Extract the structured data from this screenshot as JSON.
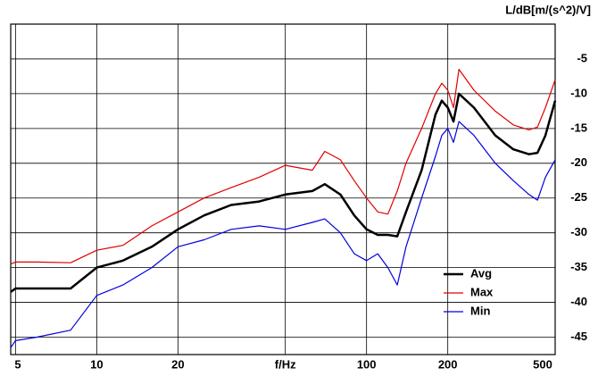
{
  "chart_data": {
    "type": "line",
    "y_label": "L/dB[m/(s^2)/V]",
    "x": [
      4.8,
      5,
      6,
      8,
      10,
      12.5,
      16,
      20,
      25,
      31.5,
      40,
      50,
      63,
      70,
      80,
      90,
      100,
      110,
      120,
      130,
      140,
      160,
      180,
      190,
      200,
      210,
      220,
      250,
      300,
      350,
      400,
      430,
      460,
      500
    ],
    "series": [
      {
        "name": "Avg",
        "color": "#000000",
        "width": 2.5,
        "values": [
          -38.5,
          -38,
          -38,
          -38,
          -35,
          -34,
          -32,
          -29.5,
          -27.5,
          -26,
          -25.5,
          -24.5,
          -24,
          -23,
          -24.5,
          -27.5,
          -29.5,
          -30.3,
          -30.3,
          -30.5,
          -27,
          -21,
          -13,
          -11,
          -12,
          -14,
          -10,
          -12,
          -16,
          -18,
          -18.7,
          -18.5,
          -16,
          -11
        ]
      },
      {
        "name": "Max",
        "color": "#e00000",
        "width": 1.2,
        "values": [
          -34.5,
          -34.2,
          -34.2,
          -34.3,
          -32.5,
          -31.8,
          -29,
          -27,
          -25,
          -23.5,
          -22,
          -20.3,
          -21,
          -18.3,
          -19.5,
          -22.5,
          -25,
          -27,
          -27.3,
          -24,
          -20,
          -15,
          -10,
          -8.5,
          -9.5,
          -12,
          -6.5,
          -9.5,
          -12.5,
          -14.5,
          -15.2,
          -14.8,
          -12,
          -8
        ]
      },
      {
        "name": "Min",
        "color": "#0000e0",
        "width": 1.2,
        "values": [
          -46.5,
          -45.5,
          -45,
          -44,
          -39,
          -37.5,
          -35,
          -32,
          -31,
          -29.5,
          -29,
          -29.5,
          -28.5,
          -28,
          -30,
          -33,
          -34,
          -33,
          -35,
          -37.5,
          -32,
          -25,
          -19,
          -16,
          -15,
          -17,
          -14,
          -16,
          -20,
          -22.5,
          -24.5,
          -25.3,
          -22,
          -19.5
        ]
      }
    ],
    "xscale": "log",
    "xlim": [
      4.8,
      500
    ],
    "xticks": [
      5,
      10,
      20,
      {
        "value": 50,
        "label": "f/Hz"
      },
      100,
      200,
      500
    ],
    "ylim": [
      -47.5,
      0
    ],
    "yticks": [
      -5,
      -10,
      -15,
      -20,
      -25,
      -30,
      -35,
      -40,
      -45
    ],
    "grid": true,
    "legend": "lower-right"
  }
}
